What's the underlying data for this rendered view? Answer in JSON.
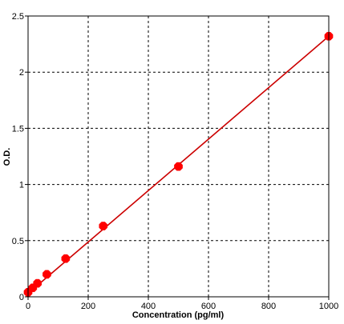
{
  "chart_data": {
    "type": "scatter",
    "xlabel": "Concentration (pg/ml)",
    "ylabel": "O.D.",
    "xlim": [
      0,
      1000
    ],
    "ylim": [
      0,
      2.5
    ],
    "x_ticks": [
      0,
      200,
      400,
      600,
      800,
      1000
    ],
    "x_tick_labels": [
      "0",
      "200",
      "400",
      "600",
      "800",
      "1000"
    ],
    "y_ticks": [
      0,
      0.5,
      1,
      1.5,
      2,
      2.5
    ],
    "y_tick_labels": [
      "0",
      "0.5",
      "1",
      "1.5",
      "2",
      "2.5"
    ],
    "grid": true,
    "series": [
      {
        "x": [
          0,
          15.6,
          31.2,
          62.5,
          125,
          250,
          500,
          1000
        ],
        "y": [
          0.04,
          0.08,
          0.12,
          0.2,
          0.34,
          0.63,
          1.16,
          2.32
        ]
      }
    ],
    "fit_line": {
      "x": [
        0,
        1000
      ],
      "y": [
        0.03,
        2.32
      ]
    },
    "colors": {
      "points": "#ff0000",
      "line": "#cc0000",
      "grid": "#000000",
      "axis": "#000000"
    }
  }
}
